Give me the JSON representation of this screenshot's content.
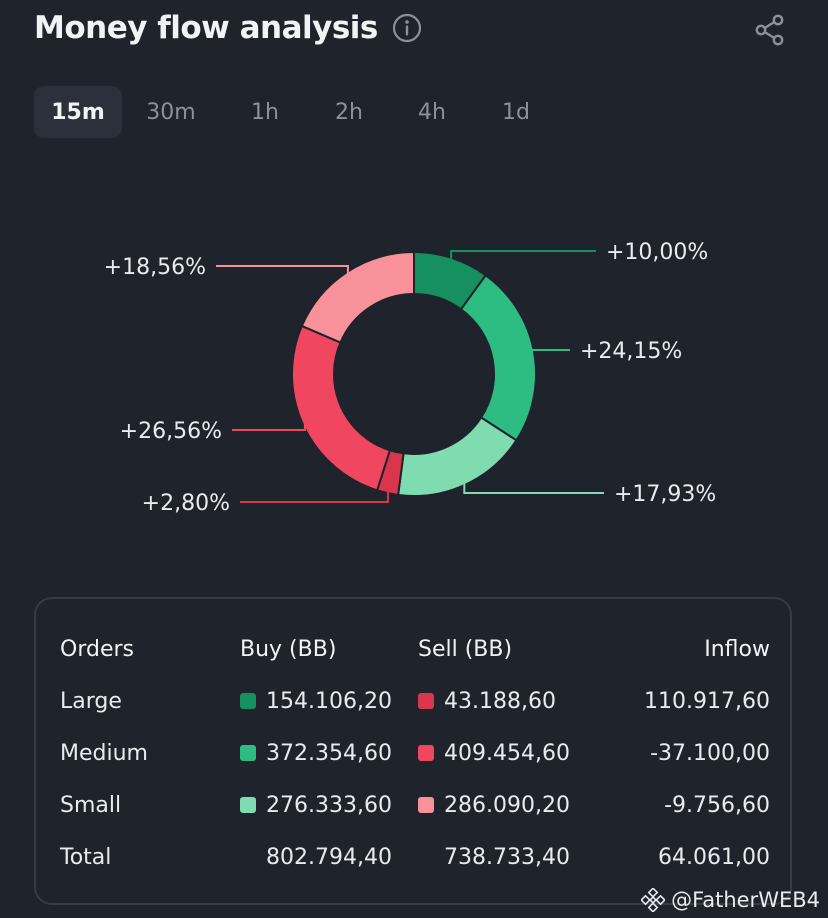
{
  "header": {
    "title": "Money flow analysis"
  },
  "tabs": [
    {
      "label": "15m",
      "active": true
    },
    {
      "label": "30m",
      "active": false
    },
    {
      "label": "1h",
      "active": false
    },
    {
      "label": "2h",
      "active": false
    },
    {
      "label": "4h",
      "active": false
    },
    {
      "label": "1d",
      "active": false
    }
  ],
  "chart_data": {
    "type": "pie",
    "categories": [
      "Large Buy",
      "Medium Buy",
      "Small Buy",
      "Large Sell",
      "Medium Sell",
      "Small Sell"
    ],
    "values": [
      10.0,
      24.15,
      17.93,
      2.8,
      26.56,
      18.56
    ],
    "labels": [
      "+10,00%",
      "+24,15%",
      "+17,93%",
      "+2,80%",
      "+26,56%",
      "+18,56%"
    ],
    "colors": [
      "#168f61",
      "#2dbd82",
      "#7fdcb0",
      "#d9364e",
      "#f0465f",
      "#f8919a"
    ]
  },
  "table": {
    "headers": {
      "orders": "Orders",
      "buy": "Buy (BB)",
      "sell": "Sell (BB)",
      "inflow": "Inflow"
    },
    "rows": [
      {
        "orders": "Large",
        "buy": "154.106,20",
        "sell": "43.188,60",
        "inflow": "110.917,60",
        "buy_color": "#168f61",
        "sell_color": "#d9364e"
      },
      {
        "orders": "Medium",
        "buy": "372.354,60",
        "sell": "409.454,60",
        "inflow": "-37.100,00",
        "buy_color": "#2dbd82",
        "sell_color": "#f0465f"
      },
      {
        "orders": "Small",
        "buy": "276.333,60",
        "sell": "286.090,20",
        "inflow": "-9.756,60",
        "buy_color": "#7fdcb0",
        "sell_color": "#f8919a"
      }
    ],
    "total": {
      "orders": "Total",
      "buy": "802.794,40",
      "sell": "738.733,40",
      "inflow": "64.061,00"
    }
  },
  "watermark": {
    "text": "@FatherWEB4",
    "icon": "binance-icon"
  }
}
